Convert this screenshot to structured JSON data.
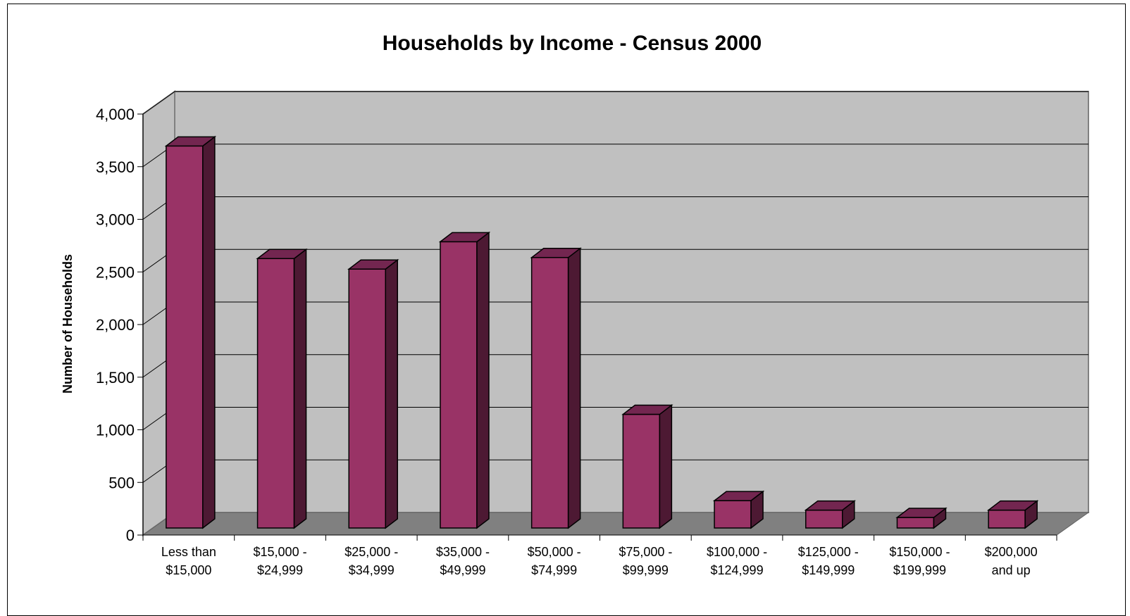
{
  "chart_data": {
    "type": "bar",
    "title": "Households by Income - Census 2000",
    "xlabel": "",
    "ylabel": "Number of Households",
    "categories": [
      [
        "Less than",
        "$15,000"
      ],
      [
        "$15,000 -",
        "$24,999"
      ],
      [
        "$25,000 -",
        "$34,999"
      ],
      [
        "$35,000 -",
        "$49,999"
      ],
      [
        "$50,000 -",
        "$74,999"
      ],
      [
        "$75,000 -",
        "$99,999"
      ],
      [
        "$100,000 -",
        "$124,999"
      ],
      [
        "$125,000 -",
        "$149,999"
      ],
      [
        "$150,000 -",
        "$199,999"
      ],
      [
        "$200,000",
        "and up"
      ]
    ],
    "values": [
      3630,
      2560,
      2460,
      2720,
      2570,
      1080,
      260,
      170,
      100,
      170
    ],
    "ylim": [
      0,
      4000
    ],
    "yticks": [
      "0",
      "500",
      "1,000",
      "1,500",
      "2,000",
      "2,500",
      "3,000",
      "3,500",
      "4,000"
    ],
    "ytick_values": [
      0,
      500,
      1000,
      1500,
      2000,
      2500,
      3000,
      3500,
      4000
    ],
    "grid": true,
    "legend": "none",
    "bar_color": "#993366",
    "wall_color": "#c0c0c0",
    "floor_color": "#808080"
  }
}
